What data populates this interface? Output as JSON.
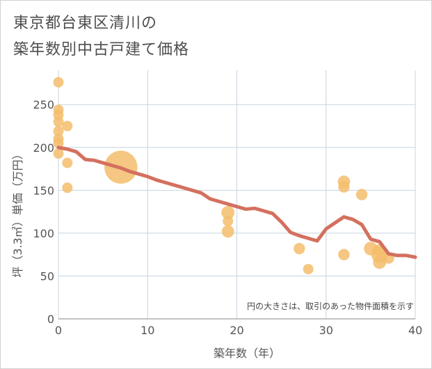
{
  "title_line1": "東京都台東区清川の",
  "title_line2": "築年数別中古戸建て価格",
  "colors": {
    "bubble": "#f3bd6c",
    "line": "#d4705f",
    "grid": "#c8d4df",
    "text": "#555555"
  },
  "chart_data": {
    "type": "scatter",
    "xlabel": "築年数（年）",
    "ylabel": "坪（3.3㎡）単価（万円）",
    "xlim": [
      0,
      40
    ],
    "ylim": [
      0,
      290
    ],
    "xticks": [
      0,
      10,
      20,
      30,
      40
    ],
    "yticks": [
      0,
      50,
      100,
      150,
      200,
      250
    ],
    "note": "円の大きさは、取引のあった物件面積を示す",
    "points": [
      {
        "x": 0,
        "y": 276,
        "size": 1
      },
      {
        "x": 0,
        "y": 244,
        "size": 1
      },
      {
        "x": 0,
        "y": 238,
        "size": 1
      },
      {
        "x": 0,
        "y": 230,
        "size": 1
      },
      {
        "x": 0,
        "y": 219,
        "size": 1
      },
      {
        "x": 0,
        "y": 210,
        "size": 1
      },
      {
        "x": 0,
        "y": 205,
        "size": 1
      },
      {
        "x": 0,
        "y": 193,
        "size": 1
      },
      {
        "x": 1,
        "y": 225,
        "size": 1
      },
      {
        "x": 1,
        "y": 182,
        "size": 1
      },
      {
        "x": 1,
        "y": 153,
        "size": 1
      },
      {
        "x": 7,
        "y": 177,
        "size": 10
      },
      {
        "x": 19,
        "y": 124,
        "size": 1.6
      },
      {
        "x": 19,
        "y": 114,
        "size": 1
      },
      {
        "x": 19,
        "y": 102,
        "size": 1.4
      },
      {
        "x": 27,
        "y": 82,
        "size": 1.2
      },
      {
        "x": 28,
        "y": 58,
        "size": 1
      },
      {
        "x": 32,
        "y": 160,
        "size": 1.4
      },
      {
        "x": 32,
        "y": 154,
        "size": 1.2
      },
      {
        "x": 32,
        "y": 75,
        "size": 1.2
      },
      {
        "x": 34,
        "y": 145,
        "size": 1.2
      },
      {
        "x": 35,
        "y": 82,
        "size": 1.7
      },
      {
        "x": 36,
        "y": 80,
        "size": 1.4
      },
      {
        "x": 36,
        "y": 75,
        "size": 2.5
      },
      {
        "x": 36,
        "y": 66,
        "size": 1.6
      },
      {
        "x": 37,
        "y": 71,
        "size": 1.2
      }
    ],
    "trend": {
      "x": [
        0,
        1,
        2,
        3,
        4,
        5,
        6,
        7,
        8,
        9,
        10,
        11,
        12,
        13,
        14,
        15,
        16,
        17,
        18,
        19,
        20,
        21,
        22,
        23,
        24,
        25,
        26,
        27,
        28,
        29,
        30,
        31,
        32,
        33,
        34,
        35,
        36,
        37,
        38,
        39,
        40
      ],
      "y": [
        200,
        198,
        195,
        186,
        185,
        182,
        179,
        176,
        172,
        169,
        166,
        162,
        159,
        156,
        153,
        150,
        147,
        140,
        137,
        134,
        131,
        128,
        129,
        126,
        123,
        113,
        101,
        97,
        94,
        91,
        105,
        112,
        119,
        116,
        110,
        93,
        90,
        76,
        74,
        74,
        72
      ]
    }
  }
}
